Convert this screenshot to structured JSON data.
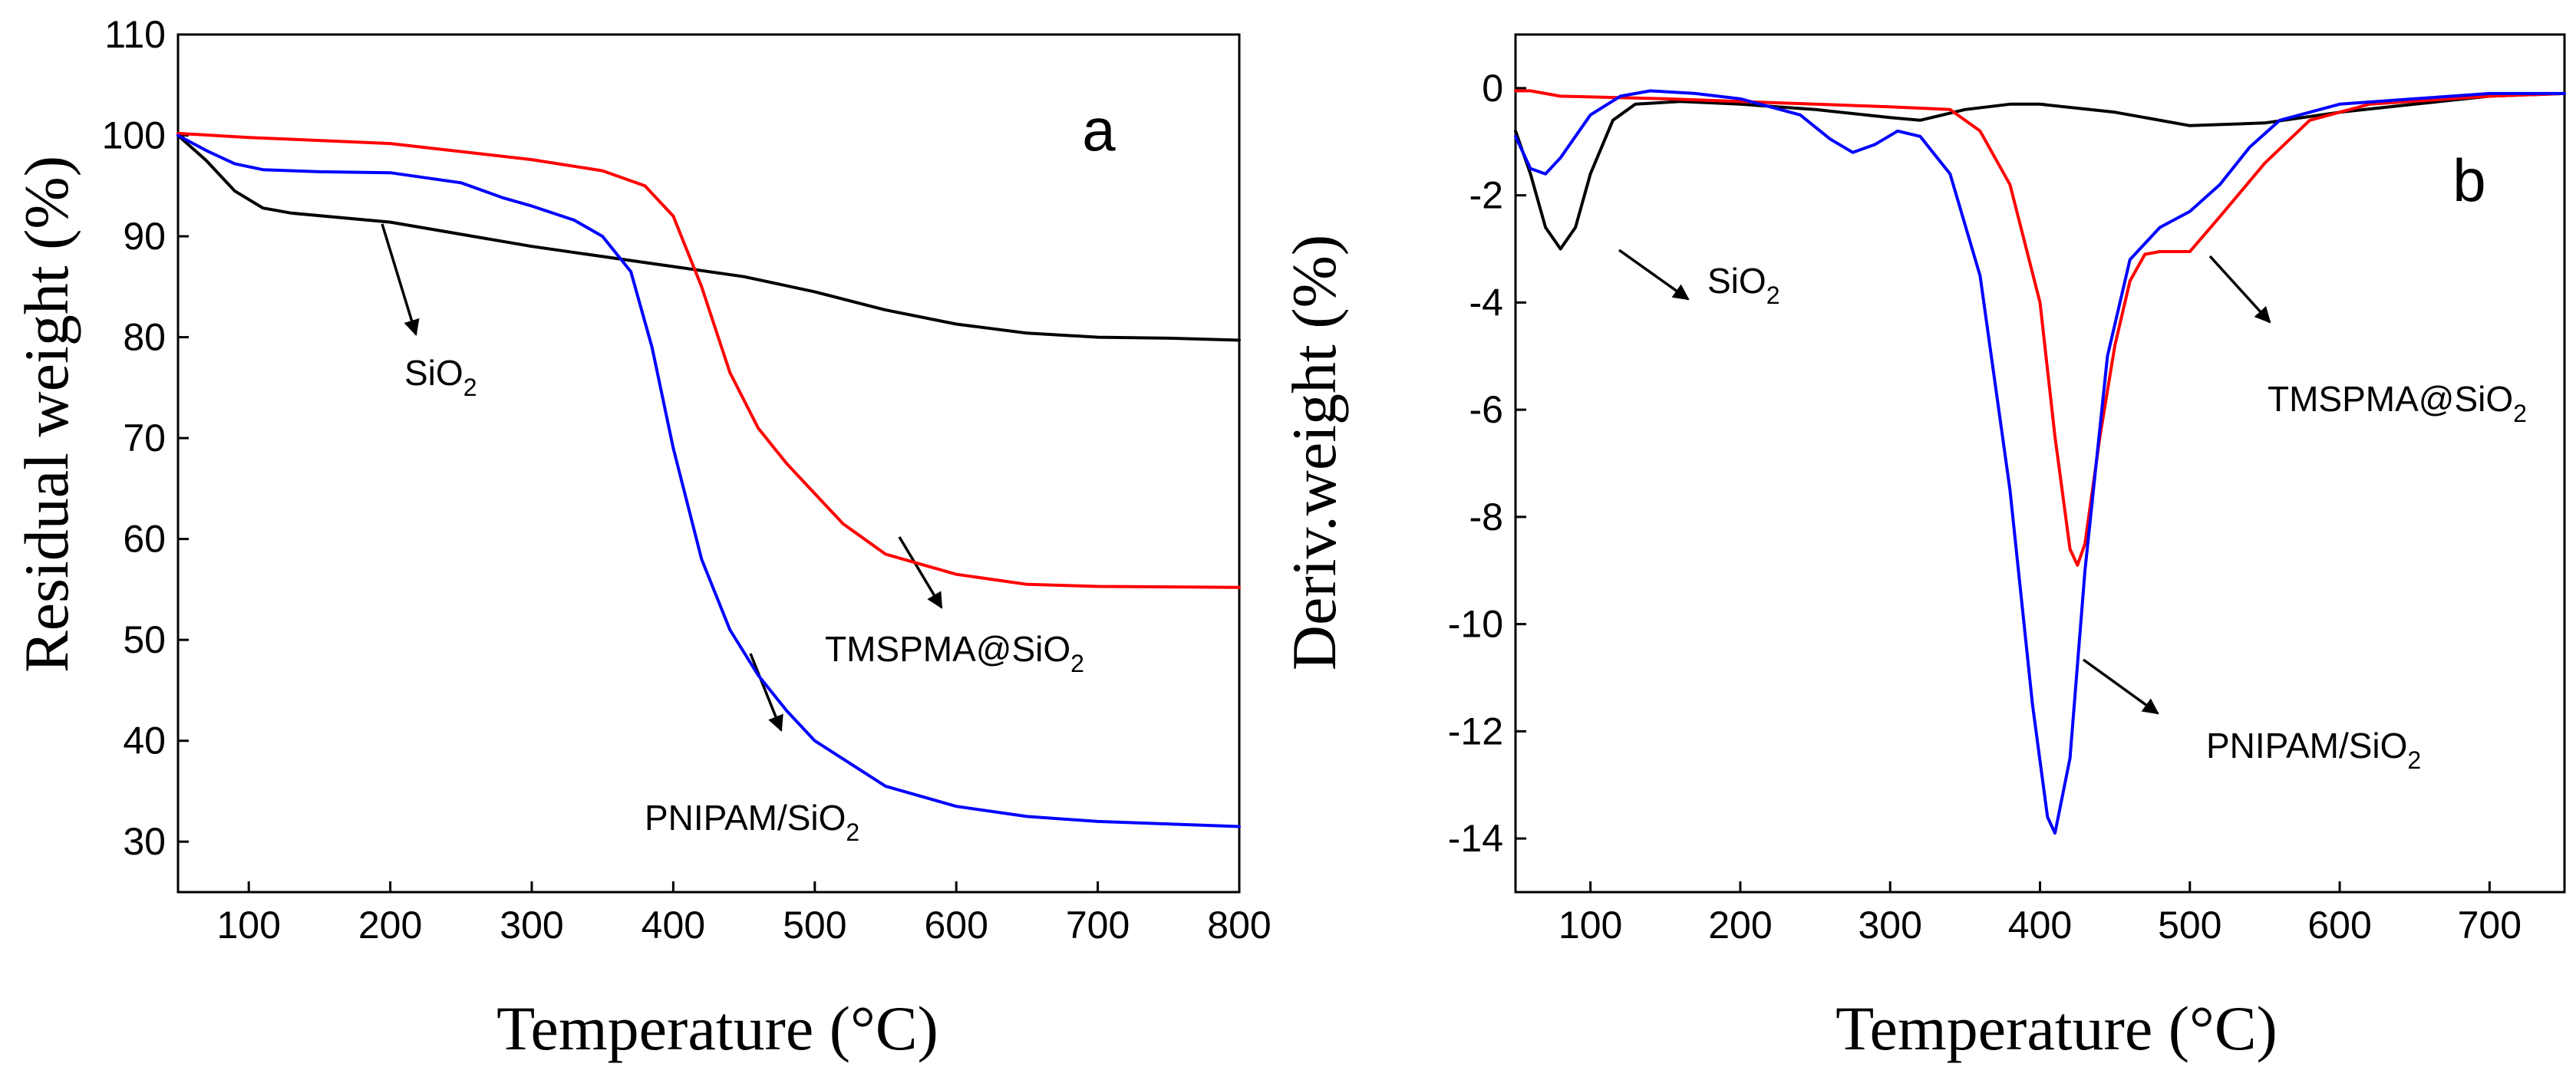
{
  "chart_data": [
    {
      "type": "line",
      "panel_label": "a",
      "xlabel": "Temperature (°C)",
      "ylabel": "Residual weight (%)",
      "xlim": [
        50,
        800
      ],
      "ylim": [
        25,
        110
      ],
      "x_ticks": [
        100,
        200,
        300,
        400,
        500,
        600,
        700,
        800
      ],
      "y_ticks": [
        30,
        40,
        50,
        60,
        70,
        80,
        90,
        100,
        110
      ],
      "series": [
        {
          "name": "SiO2",
          "color": "#000000",
          "x": [
            50,
            70,
            90,
            110,
            130,
            200,
            300,
            350,
            400,
            450,
            500,
            550,
            600,
            650,
            700,
            750,
            800
          ],
          "y": [
            100,
            97.5,
            94.5,
            92.8,
            92.3,
            91.4,
            89.0,
            88.0,
            87.0,
            86.0,
            84.5,
            82.7,
            81.3,
            80.4,
            80.0,
            79.9,
            79.7
          ]
        },
        {
          "name": "TMSPMA@SiO2",
          "color": "#ff0000",
          "x": [
            50,
            100,
            200,
            300,
            350,
            380,
            400,
            420,
            440,
            460,
            480,
            500,
            520,
            550,
            600,
            650,
            700,
            800
          ],
          "y": [
            100.2,
            99.8,
            99.2,
            97.6,
            96.5,
            95.0,
            92.0,
            85.0,
            76.5,
            71.0,
            67.5,
            64.5,
            61.5,
            58.5,
            56.5,
            55.5,
            55.3,
            55.2
          ]
        },
        {
          "name": "PNIPAM/SiO2",
          "color": "#0000ff",
          "x": [
            50,
            70,
            90,
            110,
            150,
            200,
            250,
            280,
            300,
            330,
            350,
            370,
            385,
            400,
            420,
            440,
            460,
            480,
            500,
            550,
            600,
            650,
            700,
            800
          ],
          "y": [
            100,
            98.5,
            97.2,
            96.6,
            96.4,
            96.3,
            95.3,
            93.8,
            93.0,
            91.6,
            90.0,
            86.5,
            79.0,
            69.0,
            58.0,
            51.0,
            46.5,
            43.0,
            40.0,
            35.5,
            33.5,
            32.5,
            32.0,
            31.5
          ]
        }
      ],
      "annotations": [
        {
          "base": "SiO",
          "subscript": "2",
          "target_series": "SiO2"
        },
        {
          "base": "TMSPMA@SiO",
          "subscript": "2",
          "target_series": "TMSPMA@SiO2"
        },
        {
          "base": "PNIPAM/SiO",
          "subscript": "2",
          "target_series": "PNIPAM/SiO2"
        }
      ]
    },
    {
      "type": "line",
      "panel_label": "b",
      "xlabel": "Temperature (°C)",
      "ylabel": "Deriv.weight (%)",
      "xlim": [
        50,
        750
      ],
      "ylim": [
        -15,
        1
      ],
      "x_ticks": [
        100,
        200,
        300,
        400,
        500,
        600,
        700
      ],
      "y_ticks": [
        0,
        -2,
        -4,
        -6,
        -8,
        -10,
        -12,
        -14
      ],
      "series": [
        {
          "name": "SiO2",
          "color": "#000000",
          "x": [
            50,
            60,
            70,
            80,
            90,
            100,
            115,
            130,
            160,
            200,
            250,
            300,
            320,
            350,
            380,
            400,
            450,
            500,
            550,
            600,
            650,
            700,
            750
          ],
          "y": [
            -0.8,
            -1.6,
            -2.6,
            -3.0,
            -2.6,
            -1.6,
            -0.6,
            -0.3,
            -0.25,
            -0.3,
            -0.4,
            -0.55,
            -0.6,
            -0.4,
            -0.3,
            -0.3,
            -0.45,
            -0.7,
            -0.65,
            -0.45,
            -0.3,
            -0.15,
            -0.1
          ]
        },
        {
          "name": "TMSPMA@SiO2",
          "color": "#ff0000",
          "x": [
            50,
            60,
            80,
            150,
            250,
            300,
            340,
            360,
            380,
            400,
            410,
            420,
            425,
            430,
            440,
            450,
            460,
            470,
            480,
            500,
            520,
            550,
            580,
            620,
            700,
            750
          ],
          "y": [
            -0.05,
            -0.05,
            -0.15,
            -0.2,
            -0.3,
            -0.35,
            -0.4,
            -0.8,
            -1.8,
            -4.0,
            -6.5,
            -8.6,
            -8.9,
            -8.5,
            -6.5,
            -4.8,
            -3.6,
            -3.1,
            -3.05,
            -3.05,
            -2.4,
            -1.4,
            -0.6,
            -0.3,
            -0.15,
            -0.1
          ]
        },
        {
          "name": "PNIPAM/SiO2",
          "color": "#0000ff",
          "x": [
            50,
            60,
            70,
            80,
            100,
            120,
            140,
            170,
            200,
            240,
            260,
            275,
            290,
            305,
            320,
            340,
            360,
            380,
            395,
            405,
            410,
            420,
            430,
            445,
            460,
            480,
            500,
            520,
            540,
            560,
            600,
            650,
            700,
            750
          ],
          "y": [
            -0.9,
            -1.5,
            -1.6,
            -1.3,
            -0.5,
            -0.15,
            -0.05,
            -0.1,
            -0.2,
            -0.5,
            -0.95,
            -1.2,
            -1.05,
            -0.8,
            -0.9,
            -1.6,
            -3.5,
            -7.5,
            -11.5,
            -13.6,
            -13.9,
            -12.5,
            -9.0,
            -5.0,
            -3.2,
            -2.6,
            -2.3,
            -1.8,
            -1.1,
            -0.6,
            -0.3,
            -0.2,
            -0.1,
            -0.1
          ]
        }
      ],
      "annotations": [
        {
          "base": "SiO",
          "subscript": "2",
          "target_series": "SiO2"
        },
        {
          "base": "TMSPMA@SiO",
          "subscript": "2",
          "target_series": "TMSPMA@SiO2"
        },
        {
          "base": "PNIPAM/SiO",
          "subscript": "2",
          "target_series": "PNIPAM/SiO2"
        }
      ]
    }
  ]
}
